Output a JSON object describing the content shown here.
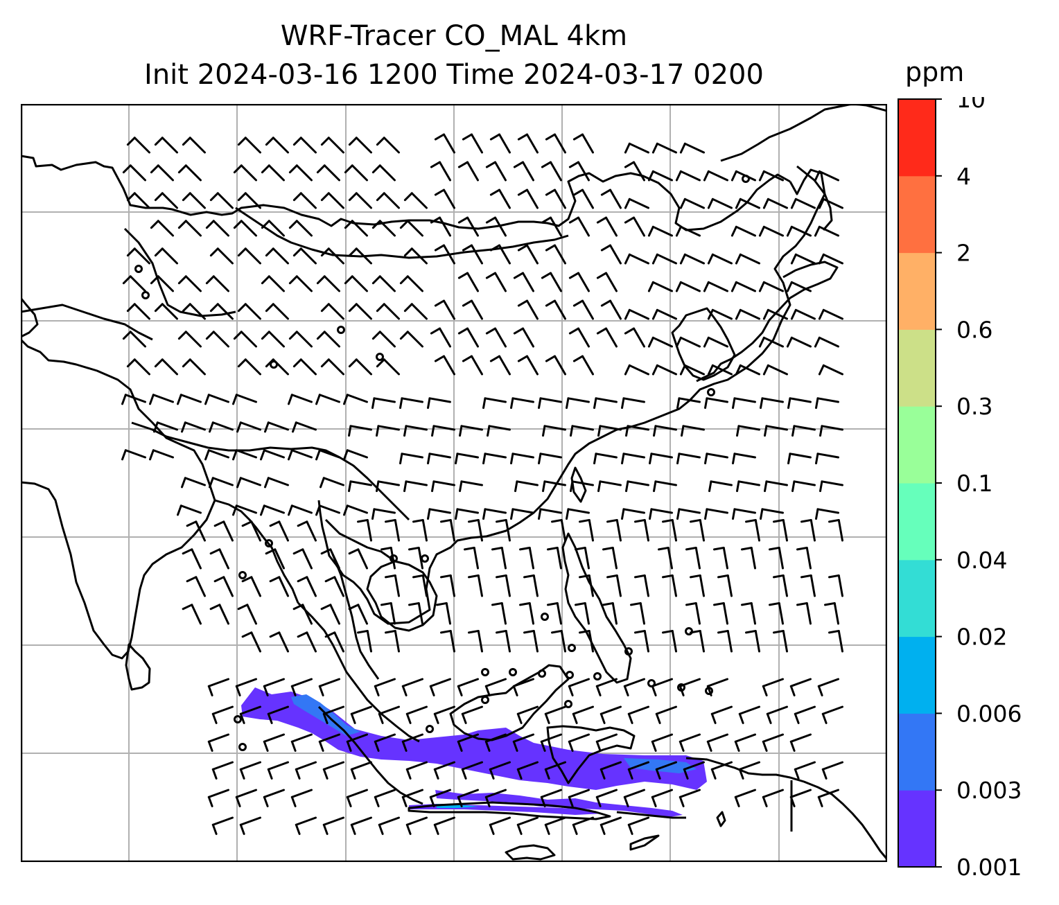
{
  "title": {
    "line1": "WRF-Tracer CO_MAL 4km",
    "line2": "Init 2024-03-16 1200 Time 2024-03-17 0200"
  },
  "colorbar": {
    "unit": "ppm",
    "levels": [
      "0.001",
      "0.003",
      "0.006",
      "0.02",
      "0.04",
      "0.1",
      "0.3",
      "0.6",
      "2",
      "4",
      "10"
    ],
    "colors": [
      "#6633ff",
      "#3377f5",
      "#00b0ef",
      "#33ddd5",
      "#66ffbb",
      "#99ff99",
      "#cce088",
      "#ffb066",
      "#ff7040",
      "#ff2a1a"
    ]
  },
  "map": {
    "gridlines": true,
    "grid_color": "#b0b0b0",
    "tracer_color": "#6633ff",
    "tracer_highlight_color": "#3377f5",
    "coastline_color": "#000000",
    "wind_barb_color": "#000000"
  }
}
